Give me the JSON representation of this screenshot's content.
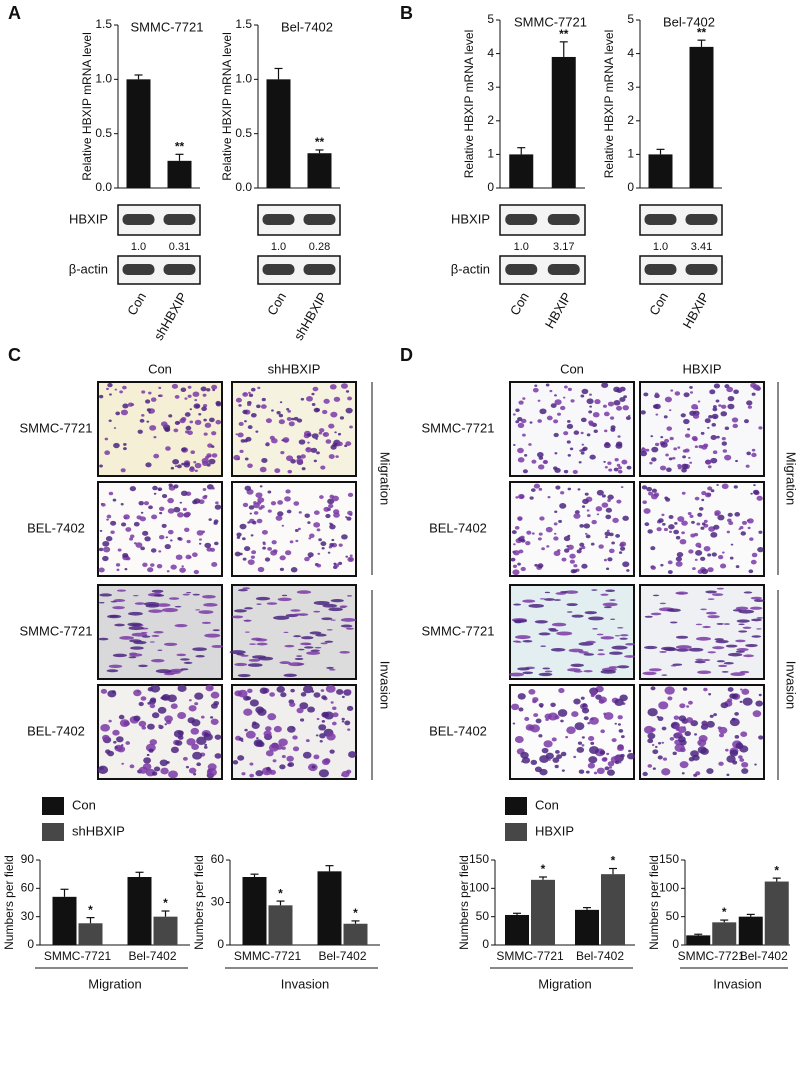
{
  "panels": [
    "A",
    "B",
    "C",
    "D"
  ],
  "chart_data": [
    {
      "type": "bar",
      "title": "SMMC-7721",
      "ylabel": "Relative HBXIP mRNA level",
      "categories": [
        "Con",
        "shHBXIP"
      ],
      "values": [
        1.0,
        0.25
      ],
      "errors": [
        0.04,
        0.06
      ],
      "significance": [
        null,
        "**"
      ],
      "color": "#111111",
      "ylim": [
        0,
        1.5
      ],
      "yticks": [
        {
          "value": 0,
          "label": "0.0"
        },
        0.5,
        {
          "value": 1,
          "label": "1.0"
        },
        1.5
      ]
    },
    {
      "type": "bar",
      "title": "Bel-7402",
      "ylabel": "Relative HBXIP mRNA level",
      "categories": [
        "Con",
        "shHBXIP"
      ],
      "values": [
        1.0,
        0.32
      ],
      "errors": [
        0.1,
        0.03
      ],
      "significance": [
        null,
        "**"
      ],
      "color": "#111111",
      "ylim": [
        0,
        1.5
      ],
      "yticks": [
        {
          "value": 0,
          "label": "0.0"
        },
        0.5,
        {
          "value": 1,
          "label": "1.0"
        },
        1.5
      ]
    },
    {
      "type": "bar",
      "title": "SMMC-7721",
      "ylabel": "Relative HBXIP mRNA level",
      "categories": [
        "Con",
        "HBXIP"
      ],
      "values": [
        1.0,
        3.9
      ],
      "errors": [
        0.2,
        0.45
      ],
      "significance": [
        null,
        "**"
      ],
      "color": "#111111",
      "ylim": [
        0,
        5
      ],
      "yticks": [
        0,
        1,
        2,
        3,
        4,
        5
      ]
    },
    {
      "type": "bar",
      "title": "Bel-7402",
      "ylabel": "Relative HBXIP mRNA level",
      "categories": [
        "Con",
        "HBXIP"
      ],
      "values": [
        1.0,
        4.2
      ],
      "errors": [
        0.15,
        0.2
      ],
      "significance": [
        null,
        "**"
      ],
      "color": "#111111",
      "ylim": [
        0,
        5
      ],
      "yticks": [
        0,
        1,
        2,
        3,
        4,
        5
      ]
    },
    {
      "type": "grouped-bar",
      "ylabel": "Numbers per field",
      "xlabel": "Migration",
      "legend": true,
      "categories": [
        "SMMC-7721",
        "Bel-7402"
      ],
      "series": [
        {
          "name": "Con",
          "color": "#111111",
          "values": [
            51,
            72
          ],
          "errors": [
            8,
            5
          ]
        },
        {
          "name": "shHBXIP",
          "color": "#474747",
          "values": [
            23,
            30
          ],
          "errors": [
            6,
            6
          ],
          "significance": [
            "*",
            "*"
          ]
        }
      ],
      "ylim": [
        0,
        90
      ],
      "yticks": [
        0,
        30,
        60,
        90
      ]
    },
    {
      "type": "grouped-bar",
      "ylabel": "Numbers per field",
      "xlabel": "Invasion",
      "categories": [
        "SMMC-7721",
        "Bel-7402"
      ],
      "series": [
        {
          "color": "#111111",
          "values": [
            48,
            52
          ],
          "errors": [
            2,
            4
          ]
        },
        {
          "color": "#474747",
          "values": [
            28,
            15
          ],
          "errors": [
            3,
            2
          ],
          "significance": [
            "*",
            "*"
          ]
        }
      ],
      "ylim": [
        0,
        60
      ],
      "yticks": [
        0,
        30,
        60
      ]
    },
    {
      "type": "grouped-bar",
      "ylabel": "Numbers per field",
      "xlabel": "Migration",
      "legend": true,
      "categories": [
        "SMMC-7721",
        "Bel-7402"
      ],
      "series": [
        {
          "name": "Con",
          "color": "#111111",
          "values": [
            53,
            62
          ],
          "errors": [
            3,
            4
          ]
        },
        {
          "name": "HBXIP",
          "color": "#474747",
          "values": [
            115,
            125
          ],
          "errors": [
            5,
            10
          ],
          "significance": [
            "*",
            "*"
          ]
        }
      ],
      "ylim": [
        0,
        150
      ],
      "yticks": [
        0,
        50,
        100,
        150
      ]
    },
    {
      "type": "grouped-bar",
      "ylabel": "Numbers per field",
      "xlabel": "Invasion",
      "categories": [
        "SMMC-7721",
        "Bel-7402"
      ],
      "series": [
        {
          "color": "#111111",
          "values": [
            17,
            50
          ],
          "errors": [
            2,
            4
          ]
        },
        {
          "color": "#474747",
          "values": [
            40,
            112
          ],
          "errors": [
            4,
            6
          ],
          "significance": [
            "*",
            "*"
          ]
        }
      ],
      "ylim": [
        0,
        150
      ],
      "yticks": [
        0,
        50,
        100,
        150
      ]
    }
  ],
  "blots": [
    {
      "labels": [
        "HBXIP",
        "β-actin"
      ],
      "quant": [
        [
          "1.0",
          "0.31"
        ],
        [
          "1.0",
          "0.28"
        ]
      ]
    },
    {
      "labels": [
        "HBXIP",
        "β-actin"
      ],
      "quant": [
        [
          "1.0",
          "3.17"
        ],
        [
          "1.0",
          "3.41"
        ]
      ]
    }
  ],
  "micrographs": [
    {
      "columns": [
        "Con",
        "shHBXIP"
      ],
      "rows": [
        "SMMC-7721",
        "BEL-7402",
        "SMMC-7721",
        "BEL-7402"
      ],
      "groups": [
        "Migration",
        "Invasion"
      ]
    },
    {
      "columns": [
        "Con",
        "HBXIP"
      ],
      "rows": [
        "SMMC-7721",
        "BEL-7402",
        "SMMC-7721",
        "BEL-7402"
      ],
      "groups": [
        "Migration",
        "Invasion"
      ]
    }
  ]
}
